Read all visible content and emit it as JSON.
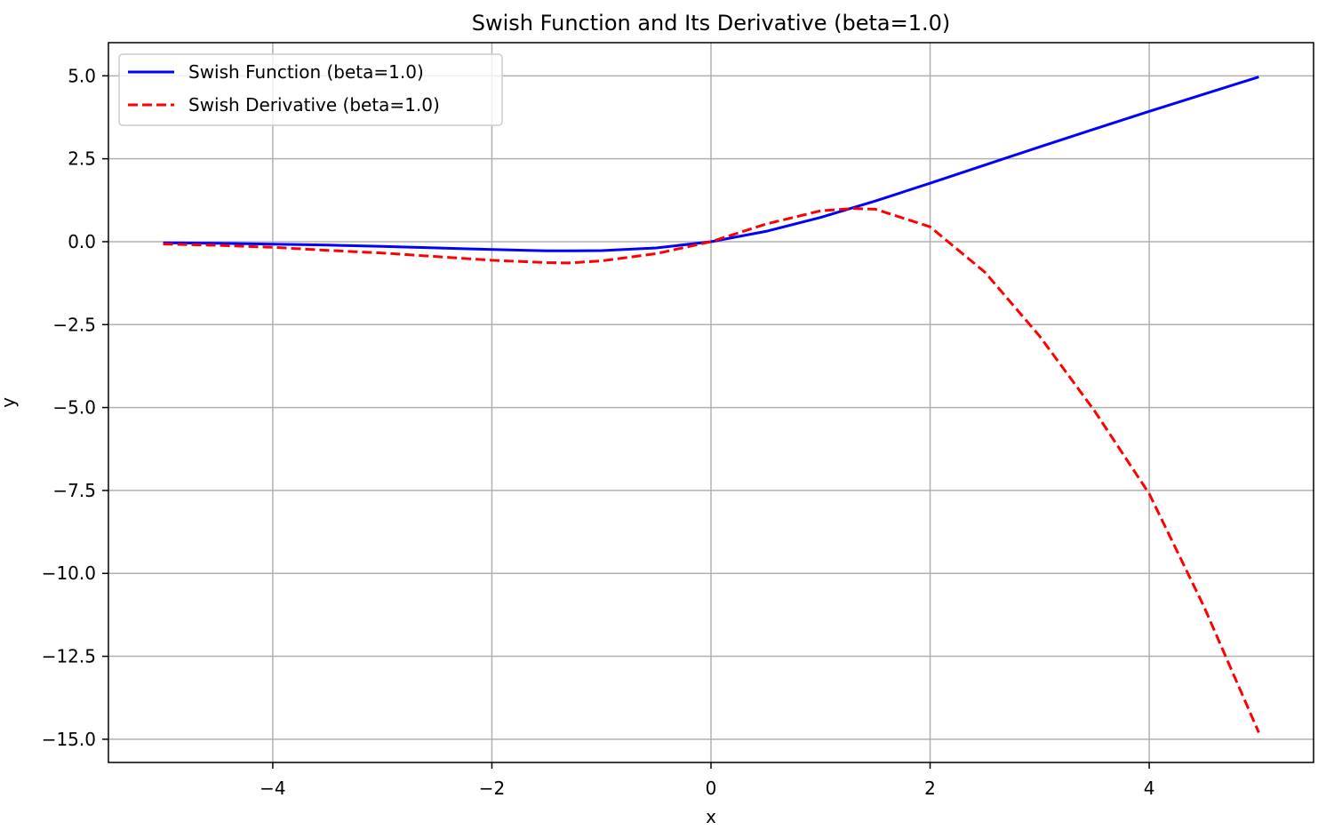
{
  "chart_data": {
    "type": "line",
    "title": "Swish Function and Its Derivative (beta=1.0)",
    "xlabel": "x",
    "ylabel": "y",
    "xlim": [
      -5.5,
      5.5
    ],
    "ylim": [
      -15.7,
      6.0
    ],
    "xticks": [
      -4,
      -2,
      0,
      2,
      4
    ],
    "xtick_labels": [
      "−4",
      "−2",
      "0",
      "2",
      "4"
    ],
    "yticks": [
      5.0,
      2.5,
      0.0,
      -2.5,
      -5.0,
      -7.5,
      -10.0,
      -12.5,
      -15.0
    ],
    "ytick_labels": [
      "5.0",
      "2.5",
      "0.0",
      "−2.5",
      "−5.0",
      "−7.5",
      "−10.0",
      "−12.5",
      "−15.0"
    ],
    "grid": true,
    "legend_position": "top-left",
    "series": [
      {
        "name": "Swish Function (beta=1.0)",
        "color": "#0000ff",
        "style": "solid",
        "x": [
          -5.0,
          -4.5,
          -4.0,
          -3.5,
          -3.0,
          -2.5,
          -2.0,
          -1.5,
          -1.25,
          -1.0,
          -0.5,
          0.0,
          0.5,
          1.0,
          1.5,
          2.0,
          2.5,
          3.0,
          3.5,
          4.0,
          4.5,
          5.0
        ],
        "y": [
          -0.033,
          -0.049,
          -0.072,
          -0.102,
          -0.142,
          -0.189,
          -0.238,
          -0.274,
          -0.278,
          -0.269,
          -0.189,
          0.0,
          0.311,
          0.731,
          1.226,
          1.762,
          2.311,
          2.858,
          3.395,
          3.928,
          4.45,
          4.967
        ]
      },
      {
        "name": "Swish Derivative (beta=1.0)",
        "color": "#ff0000",
        "style": "dashed",
        "x": [
          -5.0,
          -4.5,
          -4.0,
          -3.5,
          -3.0,
          -2.5,
          -2.0,
          -1.5,
          -1.3,
          -1.0,
          -0.5,
          0.0,
          0.5,
          1.0,
          1.3,
          1.5,
          2.0,
          2.5,
          3.0,
          3.5,
          4.0,
          4.5,
          5.0
        ],
        "y": [
          -0.07,
          -0.11,
          -0.17,
          -0.26,
          -0.34,
          -0.45,
          -0.56,
          -0.63,
          -0.64,
          -0.58,
          -0.36,
          0.0,
          0.53,
          0.93,
          1.0,
          0.98,
          0.45,
          -0.92,
          -2.85,
          -5.1,
          -7.6,
          -11.0,
          -14.8
        ]
      }
    ]
  }
}
